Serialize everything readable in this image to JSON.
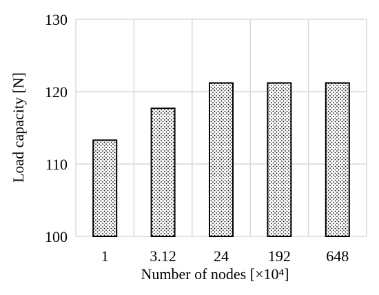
{
  "chart_data": {
    "type": "bar",
    "title": "",
    "xlabel": "Number of nodes [×10⁴]",
    "ylabel": "Load capacity [N]",
    "categories": [
      "1",
      "3.12",
      "24",
      "192",
      "648"
    ],
    "values": [
      113.3,
      117.7,
      121.2,
      121.2,
      121.2
    ],
    "ylim": [
      100,
      130
    ],
    "yticks": [
      100,
      110,
      120,
      130
    ],
    "grid": true,
    "legend": "none",
    "colors": {
      "bar_fill": "#ffffff",
      "bar_dots": "#000000",
      "bar_stroke": "#000000",
      "grid": "#d9d9d9",
      "plot_border": "#d9d9d9"
    }
  }
}
